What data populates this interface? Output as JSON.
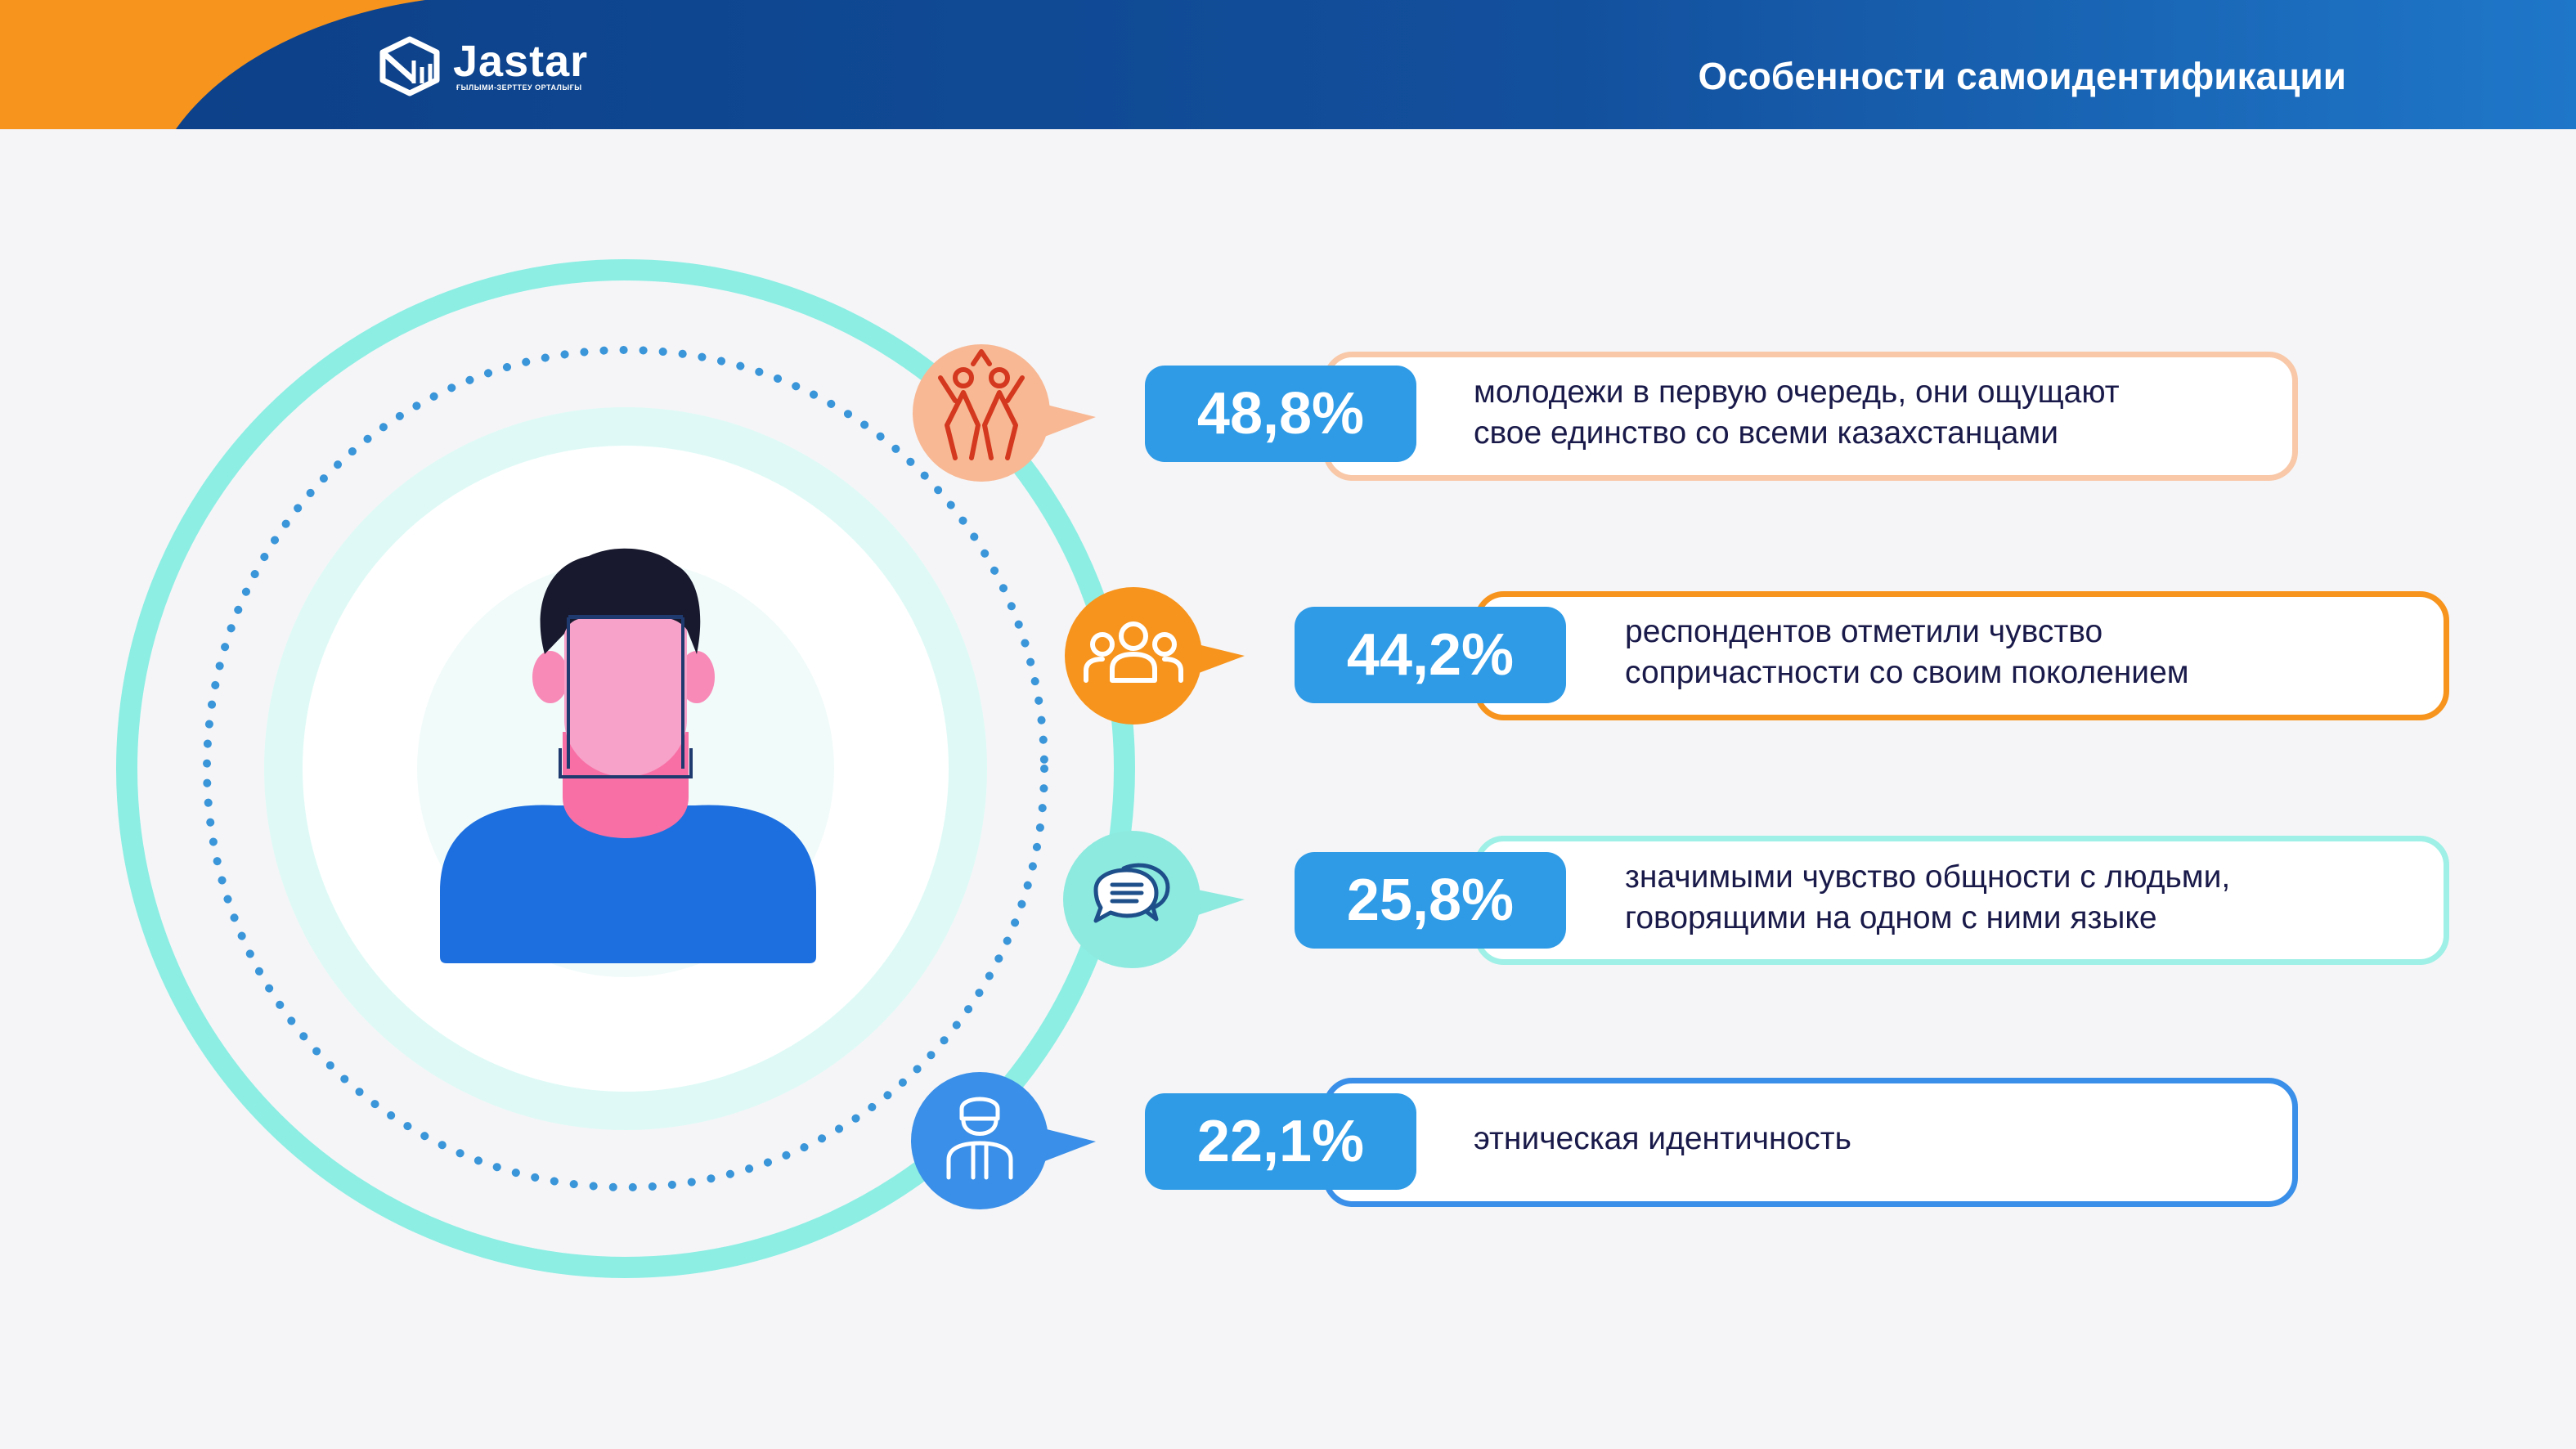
{
  "header": {
    "brand": "Jastar",
    "tagline": "ҒЫЛЫМИ-ЗЕРТТЕУ ОРТАЛЫҒЫ",
    "title": "Особенности самоидентификации"
  },
  "colors": {
    "header_blue": "#0f4f96",
    "header_orange": "#f7941d",
    "percent_box": "#2f9be6",
    "text": "#1a1a4a"
  },
  "stats": [
    {
      "value": "48,8%",
      "line1": "молодежи в первую очередь, они ощущают",
      "line2": "свое единство со всеми казахстанцами",
      "icon": "hands-unity-icon",
      "accent": "#f8b894"
    },
    {
      "value": "44,2%",
      "line1": "респондентов отметили чувство",
      "line2": "сопричастности со своим поколением",
      "icon": "group-people-icon",
      "accent": "#f7941d"
    },
    {
      "value": "25,8%",
      "line1": "значимыми чувство общности с людьми,",
      "line2": "говорящими на одном с ними языке",
      "icon": "speech-bubbles-icon",
      "accent": "#8deadf"
    },
    {
      "value": "22,1%",
      "line1": "этническая идентичность",
      "line2": "",
      "icon": "person-ethnic-icon",
      "accent": "#3a8fe8"
    }
  ]
}
